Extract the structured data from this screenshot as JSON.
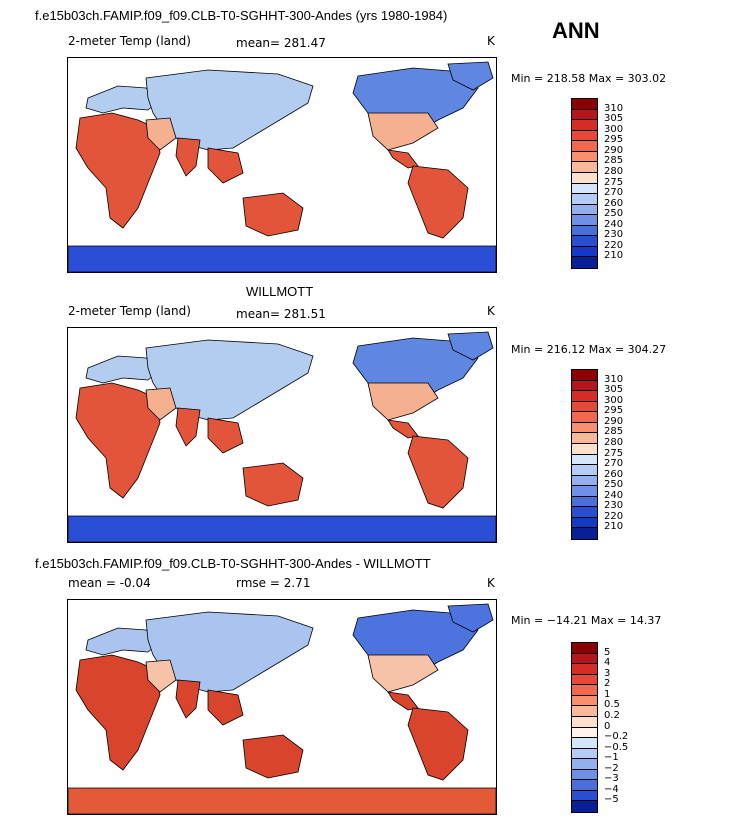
{
  "header": {
    "case_title": "f.e15b03ch.FAMIP.f09_f09.CLB-T0-SGHHT-300-Andes (yrs 1980-1984)",
    "season": "ANN"
  },
  "panels": [
    {
      "id": "model",
      "title": "",
      "variable": "2-meter Temp (land)",
      "stat1": "mean= 281.47",
      "stat2": "",
      "units": "K",
      "minmax": "Min = 218.58 Max = 303.02",
      "map_colors": {
        "ocean": "#ffffff",
        "land_warm": "#e2553a",
        "land_mid": "#f4b08f",
        "land_cool": "#b3cdf0",
        "land_cold": "#5f86e0",
        "ice": "#2a4fd6"
      }
    },
    {
      "id": "obs",
      "title": "WILLMOTT",
      "variable": "2-meter Temp (land)",
      "stat1": "mean= 281.51",
      "stat2": "",
      "units": "K",
      "minmax": "Min = 216.12 Max = 304.27",
      "map_colors": {
        "ocean": "#ffffff",
        "land_warm": "#e2553a",
        "land_mid": "#f4b08f",
        "land_cool": "#b3cdf0",
        "land_cold": "#5f86e0",
        "ice": "#2a4fd6"
      }
    },
    {
      "id": "diff",
      "title": "f.e15b03ch.FAMIP.f09_f09.CLB-T0-SGHHT-300-Andes - WILLMOTT",
      "variable": "mean =   -0.04",
      "stat1": "rmse =     2.71",
      "stat2": "",
      "units": "K",
      "minmax": "Min = −14.21 Max =  14.37",
      "map_colors": {
        "ocean": "#ffffff",
        "land_warm": "#d9442c",
        "land_mid": "#f6c3a8",
        "land_cool": "#a9c4ef",
        "land_cold": "#4d74de",
        "ice": "#e25a37"
      }
    }
  ],
  "colorbars": [
    {
      "labels": [
        "310",
        "305",
        "300",
        "295",
        "290",
        "285",
        "280",
        "275",
        "270",
        "260",
        "250",
        "240",
        "230",
        "220",
        "210"
      ],
      "colors": [
        "#8b0000",
        "#b5161b",
        "#d52c26",
        "#e6493a",
        "#f0694e",
        "#f6906e",
        "#fab89a",
        "#fde0cc",
        "#d5e5fb",
        "#b4ccf5",
        "#93b0ee",
        "#6e90e6",
        "#4a6fdd",
        "#2a4ed2",
        "#1638c7",
        "#0a1e96"
      ]
    },
    {
      "labels": [
        "310",
        "305",
        "300",
        "295",
        "290",
        "285",
        "280",
        "275",
        "270",
        "260",
        "250",
        "240",
        "230",
        "220",
        "210"
      ],
      "colors": [
        "#8b0000",
        "#b5161b",
        "#d52c26",
        "#e6493a",
        "#f0694e",
        "#f6906e",
        "#fab89a",
        "#fde0cc",
        "#d5e5fb",
        "#b4ccf5",
        "#93b0ee",
        "#6e90e6",
        "#4a6fdd",
        "#2a4ed2",
        "#1638c7",
        "#0a1e96"
      ]
    },
    {
      "labels": [
        "5",
        "4",
        "3",
        "2",
        "1",
        "0.5",
        "0.2",
        "0",
        "−0.2",
        "−0.5",
        "−1",
        "−2",
        "−3",
        "−4",
        "−5"
      ],
      "colors": [
        "#8b0000",
        "#b5161b",
        "#d52c26",
        "#e6493a",
        "#f0694e",
        "#f6906e",
        "#fab89a",
        "#fde0cc",
        "#fff4ec",
        "#d5e5fb",
        "#b4ccf5",
        "#93b0ee",
        "#6e90e6",
        "#4a6fdd",
        "#2a4ed2",
        "#0a1e96"
      ]
    }
  ]
}
